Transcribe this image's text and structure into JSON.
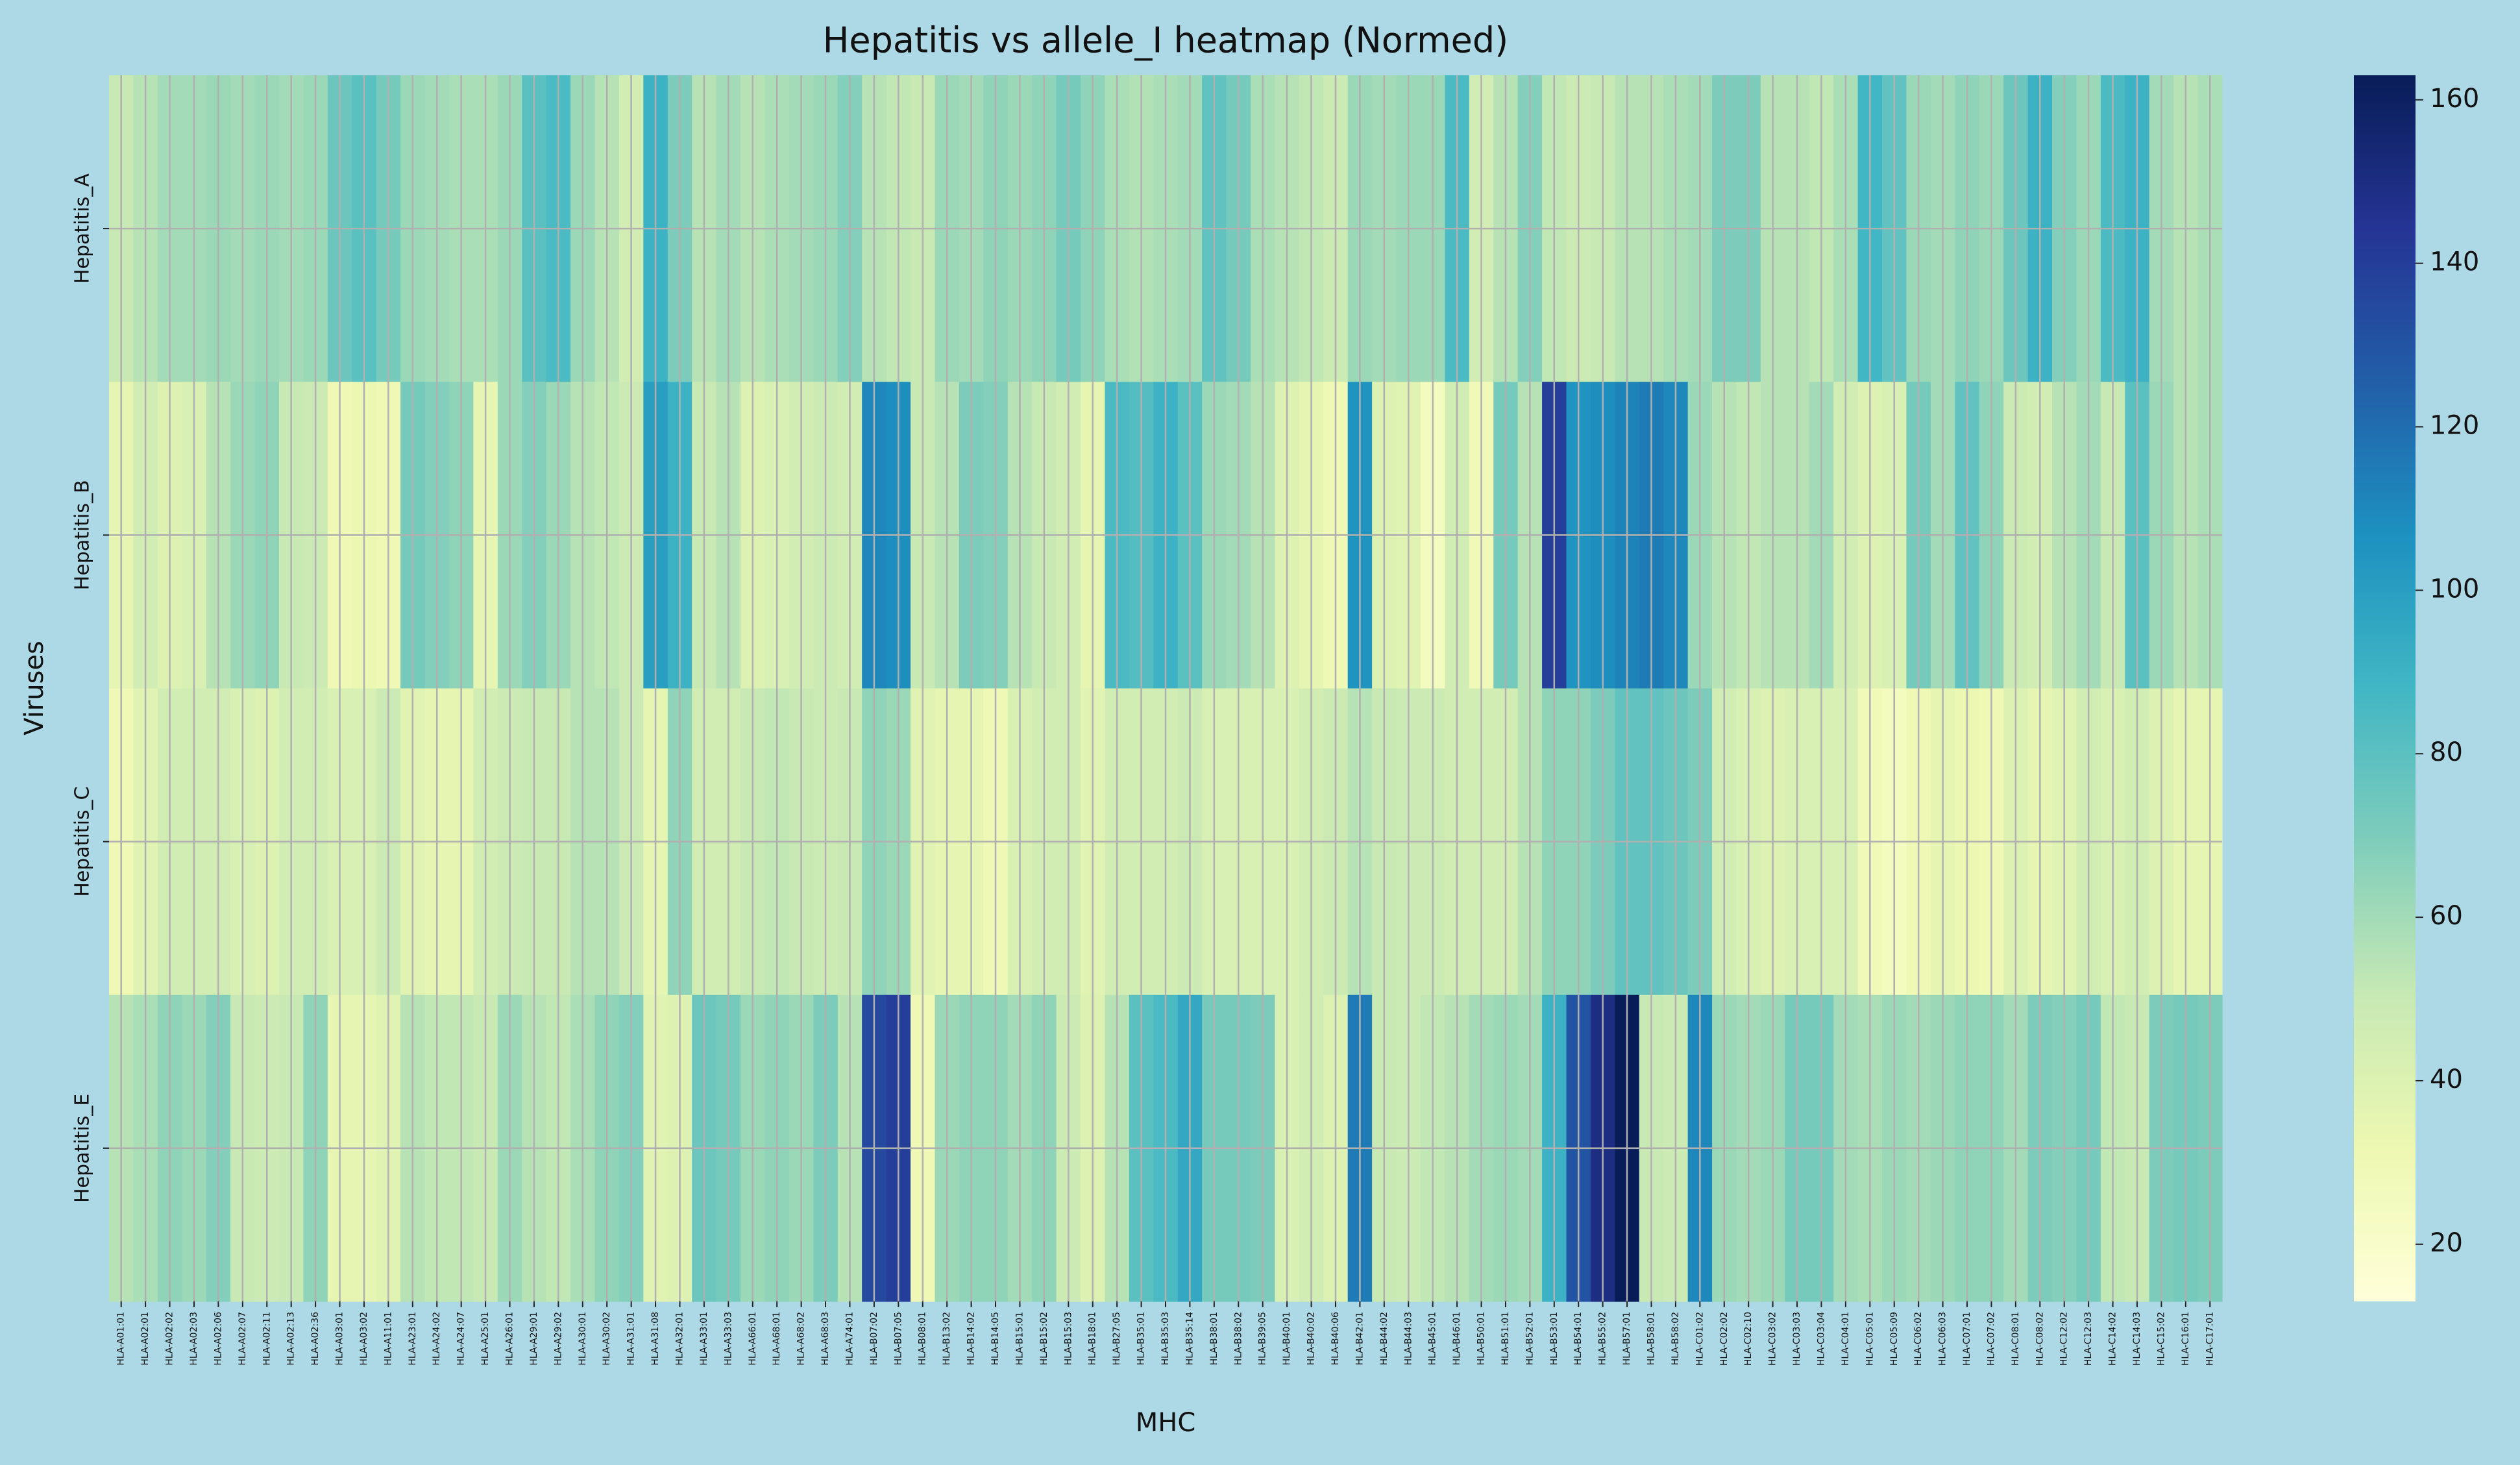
{
  "chart_data": {
    "type": "heatmap",
    "title": "Hepatitis vs allele_I heatmap (Normed)",
    "xlabel": "MHC",
    "ylabel": "Viruses",
    "categories": [
      "HLA-A01:01",
      "HLA-A02:01",
      "HLA-A02:02",
      "HLA-A02:03",
      "HLA-A02:06",
      "HLA-A02:07",
      "HLA-A02:11",
      "HLA-A02:13",
      "HLA-A02:36",
      "HLA-A03:01",
      "HLA-A03:02",
      "HLA-A11:01",
      "HLA-A23:01",
      "HLA-A24:02",
      "HLA-A24:07",
      "HLA-A25:01",
      "HLA-A26:01",
      "HLA-A29:01",
      "HLA-A29:02",
      "HLA-A30:01",
      "HLA-A30:02",
      "HLA-A31:01",
      "HLA-A31:08",
      "HLA-A32:01",
      "HLA-A33:01",
      "HLA-A33:03",
      "HLA-A66:01",
      "HLA-A68:01",
      "HLA-A68:02",
      "HLA-A68:03",
      "HLA-A74:01",
      "HLA-B07:02",
      "HLA-B07:05",
      "HLA-B08:01",
      "HLA-B13:02",
      "HLA-B14:02",
      "HLA-B14:05",
      "HLA-B15:01",
      "HLA-B15:02",
      "HLA-B15:03",
      "HLA-B18:01",
      "HLA-B27:05",
      "HLA-B35:01",
      "HLA-B35:03",
      "HLA-B35:14",
      "HLA-B38:01",
      "HLA-B38:02",
      "HLA-B39:05",
      "HLA-B40:01",
      "HLA-B40:02",
      "HLA-B40:06",
      "HLA-B42:01",
      "HLA-B44:02",
      "HLA-B44:03",
      "HLA-B45:01",
      "HLA-B46:01",
      "HLA-B50:01",
      "HLA-B51:01",
      "HLA-B52:01",
      "HLA-B53:01",
      "HLA-B54:01",
      "HLA-B55:02",
      "HLA-B57:01",
      "HLA-B58:01",
      "HLA-B58:02",
      "HLA-C01:02",
      "HLA-C02:02",
      "HLA-C02:10",
      "HLA-C03:02",
      "HLA-C03:03",
      "HLA-C03:04",
      "HLA-C04:01",
      "HLA-C05:01",
      "HLA-C05:09",
      "HLA-C06:02",
      "HLA-C06:03",
      "HLA-C07:01",
      "HLA-C07:02",
      "HLA-C08:01",
      "HLA-C08:02",
      "HLA-C12:02",
      "HLA-C12:03",
      "HLA-C14:02",
      "HLA-C14:03",
      "HLA-C15:02",
      "HLA-C16:01",
      "HLA-C17:01"
    ],
    "series": [
      {
        "name": "Hepatitis_A",
        "values": [
          50,
          55,
          60,
          60,
          62,
          60,
          62,
          60,
          62,
          75,
          80,
          72,
          62,
          60,
          58,
          58,
          62,
          80,
          85,
          62,
          55,
          45,
          90,
          70,
          55,
          60,
          55,
          58,
          60,
          62,
          68,
          55,
          52,
          50,
          62,
          60,
          65,
          62,
          65,
          72,
          65,
          58,
          56,
          58,
          60,
          78,
          72,
          58,
          55,
          52,
          48,
          62,
          60,
          62,
          62,
          85,
          45,
          55,
          68,
          52,
          48,
          50,
          55,
          55,
          58,
          60,
          70,
          70,
          55,
          55,
          52,
          58,
          88,
          78,
          62,
          60,
          65,
          62,
          75,
          90,
          68,
          62,
          85,
          90,
          60,
          55,
          58
        ]
      },
      {
        "name": "Hepatitis_B",
        "values": [
          35,
          45,
          40,
          42,
          55,
          62,
          65,
          50,
          48,
          30,
          32,
          30,
          72,
          68,
          65,
          35,
          62,
          68,
          62,
          55,
          52,
          48,
          100,
          90,
          50,
          55,
          40,
          42,
          45,
          48,
          45,
          110,
          108,
          50,
          55,
          70,
          68,
          55,
          50,
          45,
          35,
          85,
          82,
          90,
          80,
          62,
          60,
          55,
          40,
          35,
          30,
          105,
          40,
          38,
          25,
          45,
          28,
          72,
          55,
          140,
          105,
          108,
          112,
          115,
          110,
          62,
          55,
          52,
          55,
          55,
          60,
          45,
          40,
          42,
          72,
          60,
          78,
          65,
          48,
          45,
          55,
          60,
          50,
          80,
          62,
          55,
          58
        ]
      },
      {
        "name": "Hepatitis_C",
        "values": [
          30,
          38,
          45,
          45,
          45,
          42,
          40,
          45,
          45,
          42,
          42,
          48,
          38,
          35,
          35,
          45,
          48,
          50,
          50,
          55,
          55,
          48,
          35,
          65,
          45,
          45,
          50,
          52,
          50,
          48,
          50,
          65,
          62,
          38,
          35,
          35,
          30,
          42,
          45,
          45,
          38,
          45,
          45,
          45,
          48,
          42,
          42,
          42,
          42,
          45,
          48,
          55,
          50,
          48,
          48,
          45,
          45,
          45,
          55,
          65,
          65,
          70,
          78,
          78,
          75,
          70,
          45,
          42,
          40,
          42,
          42,
          42,
          28,
          25,
          30,
          35,
          32,
          30,
          40,
          35,
          38,
          45,
          42,
          45,
          40,
          35,
          35
        ]
      },
      {
        "name": "Hepatitis_E",
        "values": [
          55,
          58,
          65,
          62,
          68,
          50,
          48,
          50,
          65,
          35,
          35,
          38,
          55,
          52,
          52,
          50,
          62,
          55,
          52,
          58,
          65,
          68,
          38,
          40,
          75,
          72,
          62,
          65,
          62,
          70,
          55,
          135,
          140,
          30,
          62,
          65,
          65,
          60,
          65,
          48,
          40,
          55,
          80,
          85,
          95,
          72,
          72,
          70,
          42,
          45,
          40,
          115,
          50,
          48,
          52,
          55,
          60,
          62,
          60,
          90,
          130,
          150,
          163,
          50,
          48,
          110,
          62,
          60,
          62,
          72,
          72,
          60,
          58,
          62,
          60,
          62,
          65,
          65,
          60,
          70,
          68,
          72,
          52,
          50,
          70,
          72,
          70
        ]
      }
    ],
    "zlim": [
      13,
      163
    ],
    "zticks": [
      20,
      40,
      60,
      80,
      100,
      120,
      140,
      160
    ],
    "colors": [
      "#ffffd9",
      "#edf8b1",
      "#c7e9b4",
      "#7fcdbb",
      "#41b6c4",
      "#1d91c0",
      "#225ea8",
      "#253494",
      "#081d58"
    ],
    "grid": true
  }
}
